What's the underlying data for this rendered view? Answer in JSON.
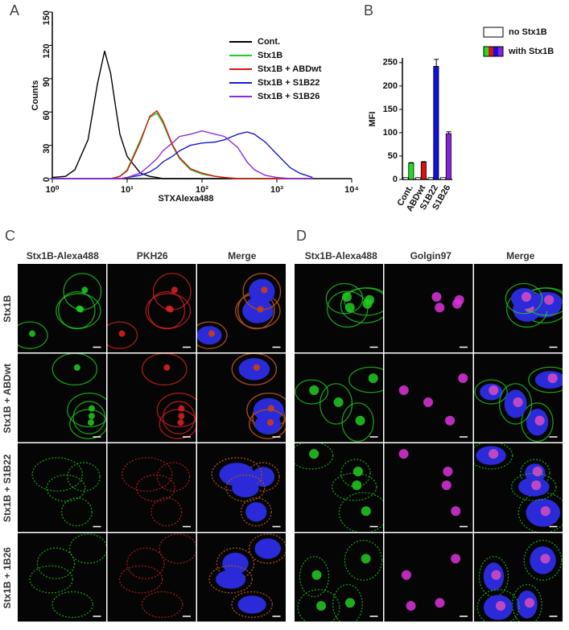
{
  "chart_data": [
    {
      "type": "line",
      "panel_label": "A",
      "x_label": "STXAlexa488",
      "y_label": "Counts",
      "log_x": true,
      "x": [
        1,
        1.5,
        2,
        3,
        4,
        5,
        6,
        7,
        8,
        10,
        15,
        20,
        25,
        30,
        40,
        50,
        70,
        100,
        150,
        200,
        300,
        400,
        500,
        700,
        1000,
        1500,
        2000,
        3000
      ],
      "xlim": [
        1,
        10000
      ],
      "xticks": [
        {
          "value": 1,
          "label": "10⁰"
        },
        {
          "value": 10,
          "label": "10¹"
        },
        {
          "value": 100,
          "label": "10²"
        },
        {
          "value": 1000,
          "label": "10³"
        },
        {
          "value": 10000,
          "label": "10⁴"
        }
      ],
      "ylim": [
        0,
        150
      ],
      "yticks": [
        0,
        30,
        60,
        90,
        120,
        150
      ],
      "series": [
        {
          "name": "Cont.",
          "color": "#000000",
          "values": [
            1,
            2,
            8,
            35,
            85,
            115,
            95,
            65,
            40,
            20,
            5,
            2,
            1,
            0,
            0,
            0,
            0,
            0,
            0,
            0,
            0,
            0,
            0,
            0,
            0,
            0,
            0,
            0
          ]
        },
        {
          "name": "Stx1B",
          "color": "#22cc22",
          "values": [
            0,
            0,
            0,
            0,
            0,
            0,
            0,
            1,
            2,
            8,
            35,
            55,
            59,
            50,
            30,
            18,
            8,
            4,
            2,
            1,
            0,
            0,
            0,
            0,
            0,
            0,
            0,
            0
          ]
        },
        {
          "name": "Stx1B + ABDwt",
          "color": "#dd1111",
          "values": [
            0,
            0,
            0,
            0,
            0,
            0,
            0,
            1,
            2,
            7,
            33,
            56,
            61,
            52,
            31,
            19,
            9,
            5,
            2,
            1,
            0,
            0,
            0,
            0,
            0,
            0,
            0,
            0
          ]
        },
        {
          "name": "Stx1B + S1B22",
          "color": "#1a1acc",
          "values": [
            0,
            0,
            0,
            0,
            0,
            0,
            0,
            0,
            0,
            1,
            3,
            6,
            10,
            15,
            20,
            25,
            30,
            32,
            33,
            35,
            40,
            42,
            40,
            33,
            22,
            10,
            5,
            1
          ]
        },
        {
          "name": "Stx1B + S1B26",
          "color": "#8a2be2",
          "values": [
            0,
            0,
            0,
            0,
            0,
            0,
            0,
            0,
            0,
            1,
            5,
            12,
            18,
            25,
            32,
            38,
            40,
            43,
            40,
            38,
            28,
            15,
            8,
            3,
            1,
            0,
            0,
            0
          ]
        }
      ]
    },
    {
      "type": "bar",
      "panel_label": "B",
      "y_label": "MFI",
      "categories": [
        "Cont.",
        "ABDwt",
        "S1B22",
        "S1B26"
      ],
      "ylim": [
        0,
        260
      ],
      "yticks": [
        0,
        50,
        100,
        150,
        200,
        250
      ],
      "series": [
        {
          "name": "no Stx1B",
          "color": "#ffffff",
          "values": [
            4,
            4,
            4,
            4
          ]
        },
        {
          "name": "with Stx1B",
          "colors": [
            "#22dd22",
            "#dd1111",
            "#1111dd",
            "#8a22dd"
          ],
          "values": [
            35,
            37,
            242,
            98
          ],
          "errors": [
            1,
            1,
            15,
            4
          ]
        }
      ]
    }
  ],
  "microscopy": [
    {
      "label": "C",
      "columns": [
        "Stx1B-Alexa488",
        "PKH26",
        "Merge"
      ],
      "rows": [
        "Stx1B",
        "Stx1B + ABDwt",
        "Stx1B + S1B22",
        "Stx1B + 1B26"
      ]
    },
    {
      "label": "D",
      "columns": [
        "Stx1B-Alexa488",
        "Golgin97",
        "Merge"
      ]
    }
  ]
}
